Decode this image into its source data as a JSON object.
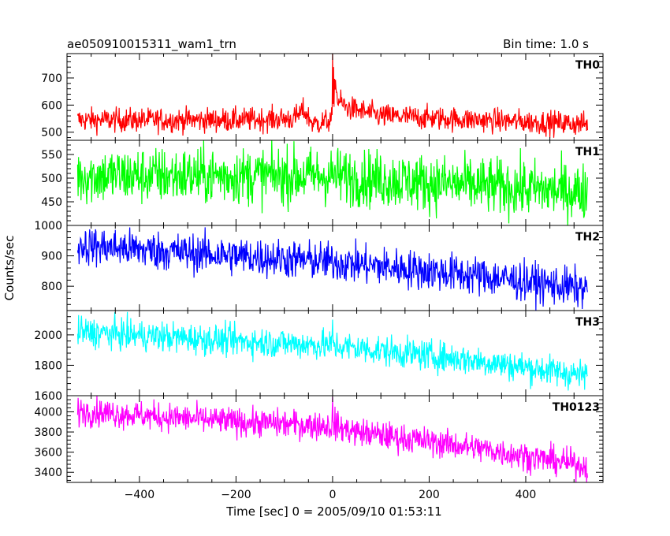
{
  "header": {
    "title": "ae050910015311_wam1_trn",
    "bin_time": "Bin time: 1.0 s"
  },
  "chart_data": {
    "type": "line",
    "title": "ae050910015311_wam1_trn",
    "xlabel": "Time [sec] 0 = 2005/09/10 01:53:11",
    "ylabel": "Counts/sec",
    "xlim": [
      -550,
      560
    ],
    "x_ticks": [
      -400,
      -200,
      0,
      200,
      400
    ],
    "x_tick_labels": [
      "−400",
      "−200",
      "0",
      "200",
      "400"
    ],
    "x_range": [
      -528,
      528
    ],
    "x_step": 1,
    "panels": [
      {
        "name": "TH0",
        "color": "#ff0000",
        "ylim": [
          470,
          790
        ],
        "yticks": [
          500,
          600,
          700
        ],
        "ytick_labels": [
          "500",
          "600",
          "700"
        ],
        "trend": [
          [
            -528,
            545
          ],
          [
            -200,
            545
          ],
          [
            -80,
            550
          ],
          [
            -60,
            580
          ],
          [
            -40,
            530
          ],
          [
            0,
            545
          ],
          [
            5,
            700
          ],
          [
            10,
            620
          ],
          [
            30,
            590
          ],
          [
            100,
            560
          ],
          [
            300,
            545
          ],
          [
            528,
            530
          ]
        ],
        "noise": 22,
        "spikes": [
          [
            0,
            790
          ],
          [
            2,
            740
          ]
        ]
      },
      {
        "name": "TH1",
        "color": "#00ff00",
        "ylim": [
          400,
          580
        ],
        "yticks": [
          450,
          500,
          550
        ],
        "ytick_labels": [
          "450",
          "500",
          "550"
        ],
        "trend": [
          [
            -528,
            505
          ],
          [
            0,
            505
          ],
          [
            200,
            490
          ],
          [
            528,
            470
          ]
        ],
        "noise": 30,
        "spikes": []
      },
      {
        "name": "TH2",
        "color": "#0000ff",
        "ylim": [
          720,
          1000
        ],
        "yticks": [
          800,
          900,
          1000
        ],
        "ytick_labels": [
          "800",
          "900",
          "1000"
        ],
        "trend": [
          [
            -528,
            935
          ],
          [
            -300,
            910
          ],
          [
            0,
            880
          ],
          [
            300,
            835
          ],
          [
            528,
            790
          ]
        ],
        "noise": 32,
        "spikes": []
      },
      {
        "name": "TH3",
        "color": "#00ffff",
        "ylim": [
          1600,
          2160
        ],
        "yticks": [
          1600,
          1800,
          2000
        ],
        "ytick_labels": [
          "1600",
          "1800",
          "2000"
        ],
        "trend": [
          [
            -528,
            2020
          ],
          [
            -200,
            1960
          ],
          [
            0,
            1930
          ],
          [
            300,
            1830
          ],
          [
            528,
            1730
          ]
        ],
        "noise": 50,
        "spikes": [
          [
            0,
            2100
          ]
        ]
      },
      {
        "name": "TH0123",
        "color": "#ff00ff",
        "ylim": [
          3300,
          4160
        ],
        "yticks": [
          3400,
          3600,
          3800,
          4000
        ],
        "ytick_labels": [
          "3400",
          "3600",
          "3800",
          "4000"
        ],
        "trend": [
          [
            -528,
            4010
          ],
          [
            -200,
            3900
          ],
          [
            0,
            3860
          ],
          [
            50,
            3800
          ],
          [
            300,
            3640
          ],
          [
            528,
            3460
          ]
        ],
        "noise": 70,
        "spikes": [
          [
            0,
            4150
          ],
          [
            5,
            4050
          ]
        ]
      }
    ]
  }
}
